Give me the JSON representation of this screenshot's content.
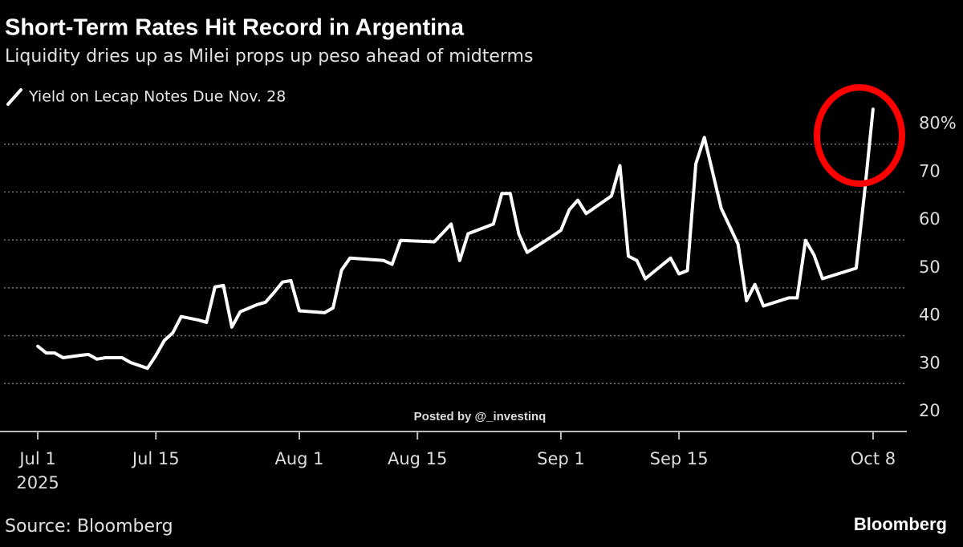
{
  "chart_data": {
    "type": "line",
    "title": "Short-Term Rates Hit Record in Argentina",
    "subtitle": "Liquidity dries up as Milei props up peso ahead of midterms",
    "source": "Source: Bloomberg",
    "brand": "Bloomberg",
    "watermark": "Posted by @_investinq",
    "x": [
      "2025-07-01",
      "2025-07-02",
      "2025-07-03",
      "2025-07-04",
      "2025-07-06",
      "2025-07-07",
      "2025-07-08",
      "2025-07-09",
      "2025-07-11",
      "2025-07-12",
      "2025-07-14",
      "2025-07-15",
      "2025-07-16",
      "2025-07-17",
      "2025-07-18",
      "2025-07-20",
      "2025-07-21",
      "2025-07-22",
      "2025-07-23",
      "2025-07-24",
      "2025-07-25",
      "2025-07-27",
      "2025-07-28",
      "2025-07-29",
      "2025-07-30",
      "2025-07-31",
      "2025-08-01",
      "2025-08-04",
      "2025-08-05",
      "2025-08-06",
      "2025-08-07",
      "2025-08-11",
      "2025-08-12",
      "2025-08-13",
      "2025-08-17",
      "2025-08-19",
      "2025-08-20",
      "2025-08-21",
      "2025-08-24",
      "2025-08-25",
      "2025-08-26",
      "2025-08-27",
      "2025-08-28",
      "2025-08-31",
      "2025-09-01",
      "2025-09-02",
      "2025-09-03",
      "2025-09-04",
      "2025-09-07",
      "2025-09-08",
      "2025-09-09",
      "2025-09-10",
      "2025-09-11",
      "2025-09-14",
      "2025-09-15",
      "2025-09-16",
      "2025-09-17",
      "2025-09-18",
      "2025-09-20",
      "2025-09-22",
      "2025-09-23",
      "2025-09-24",
      "2025-09-25",
      "2025-09-28",
      "2025-09-29",
      "2025-09-30",
      "2025-10-01",
      "2025-10-02",
      "2025-10-06",
      "2025-10-07",
      "2025-10-08"
    ],
    "series": [
      {
        "name": "Yield on Lecap Notes Due Nov. 28",
        "color": "#ffffff",
        "values": [
          37.8,
          36.4,
          36.4,
          35.4,
          35.9,
          36.1,
          35.1,
          35.4,
          35.4,
          34.4,
          33.2,
          35.9,
          39.0,
          40.6,
          44.0,
          43.3,
          42.8,
          50.2,
          50.5,
          41.8,
          45.0,
          46.5,
          47.0,
          49.0,
          51.2,
          51.5,
          45.2,
          44.8,
          45.8,
          53.7,
          56.2,
          55.7,
          54.9,
          59.9,
          59.6,
          63.3,
          55.7,
          61.3,
          63.3,
          69.7,
          69.7,
          61.3,
          57.4,
          60.8,
          62.0,
          66.3,
          68.3,
          65.5,
          69.2,
          75.5,
          56.6,
          55.7,
          51.9,
          56.2,
          52.9,
          53.6,
          75.9,
          81.4,
          66.6,
          59.1,
          47.3,
          50.7,
          46.2,
          47.9,
          47.9,
          59.9,
          56.9,
          51.9,
          54.1,
          70.0,
          87.3
        ]
      }
    ],
    "xlim": [
      "2025-06-27",
      "2025-10-12"
    ],
    "xticks": [
      {
        "value": "2025-07-01",
        "label": "Jul 1"
      },
      {
        "value": "2025-07-15",
        "label": "Jul 15"
      },
      {
        "value": "2025-08-01",
        "label": "Aug 1"
      },
      {
        "value": "2025-08-15",
        "label": "Aug 15"
      },
      {
        "value": "2025-09-01",
        "label": "Sep 1"
      },
      {
        "value": "2025-09-15",
        "label": "Sep 15"
      },
      {
        "value": "2025-10-08",
        "label": "Oct 8"
      }
    ],
    "x_year_label": "2025",
    "ylim": [
      20,
      90
    ],
    "yticks": [
      20,
      30,
      40,
      50,
      60,
      70,
      {
        "value": 80,
        "label": "80%"
      }
    ],
    "grid": true
  }
}
